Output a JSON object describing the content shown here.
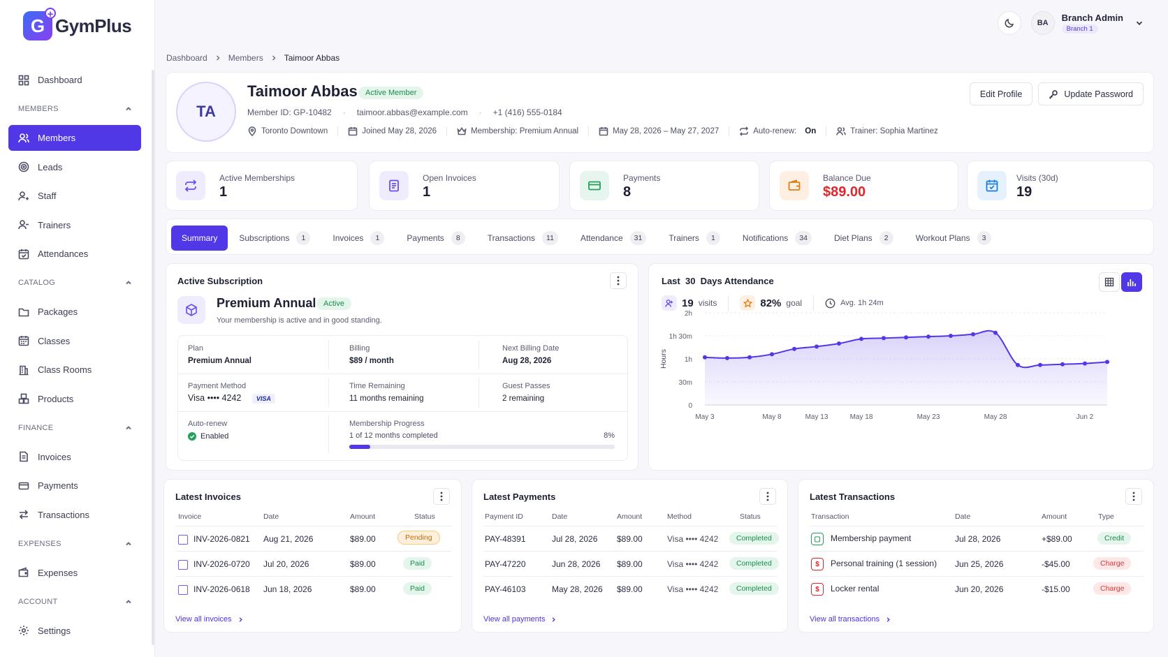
{
  "app": {
    "logo_text": "GymPlus"
  },
  "user": {
    "initials": "BA",
    "name": "Branch Admin",
    "branch": "Branch 1"
  },
  "breadcrumb": [
    "Dashboard",
    "Members",
    "Taimoor Abbas"
  ],
  "sidebar": {
    "dashboard": "Dashboard",
    "sections": {
      "members": "MEMBERS",
      "catalog": "CATALOG",
      "finance": "FINANCE",
      "expenses": "EXPENSES",
      "account": "ACCOUNT"
    },
    "items": {
      "members": "Members",
      "leads": "Leads",
      "staff": "Staff",
      "trainers": "Trainers",
      "attendances": "Attendances",
      "packages": "Packages",
      "classes": "Classes",
      "class_rooms": "Class Rooms",
      "products": "Products",
      "invoices": "Invoices",
      "payments": "Payments",
      "transactions": "Transactions",
      "expenses": "Expenses",
      "settings": "Settings"
    }
  },
  "profile": {
    "initials": "TA",
    "name": "Taimoor Abbas",
    "status": "Active Member",
    "member_id": "Member ID: GP-10482",
    "email": "taimoor.abbas@example.com",
    "phone": "+1 (416) 555-0184",
    "location": "Toronto Downtown",
    "joined": "Joined May 28, 2026",
    "membership": "Membership: Premium Annual",
    "period": "May 28, 2026 – May 27, 2027",
    "auto_renew_label": "Auto-renew:",
    "auto_renew_value": "On",
    "trainer": "Trainer: Sophia Martinez",
    "edit_btn": "Edit Profile",
    "password_btn": "Update Password"
  },
  "stats": [
    {
      "label": "Active Memberships",
      "value": "1"
    },
    {
      "label": "Open Invoices",
      "value": "1"
    },
    {
      "label": "Payments",
      "value": "8"
    },
    {
      "label": "Balance Due",
      "value": "$89.00"
    },
    {
      "label": "Visits (30d)",
      "value": "19"
    }
  ],
  "tabs": [
    {
      "label": "Summary"
    },
    {
      "label": "Subscriptions",
      "count": "1"
    },
    {
      "label": "Invoices",
      "count": "1"
    },
    {
      "label": "Payments",
      "count": "8"
    },
    {
      "label": "Transactions",
      "count": "11"
    },
    {
      "label": "Attendance",
      "count": "31"
    },
    {
      "label": "Trainers",
      "count": "1"
    },
    {
      "label": "Notifications",
      "count": "34"
    },
    {
      "label": "Diet Plans",
      "count": "2"
    },
    {
      "label": "Workout Plans",
      "count": "3"
    }
  ],
  "subscription": {
    "title": "Active Subscription",
    "plan_name": "Premium Annual",
    "status": "Active",
    "description": "Your membership is active and in good standing.",
    "plan_label": "Plan",
    "plan_value": "Premium Annual",
    "billing_label": "Billing",
    "billing_value": "$89 / month",
    "next_label": "Next Billing Date",
    "next_value": "Aug 28, 2026",
    "method_label": "Payment Method",
    "method_value": "Visa •••• 4242",
    "card_brand": "VISA",
    "remaining_label": "Time Remaining",
    "remaining_value": "11 months remaining",
    "guest_label": "Guest Passes",
    "guest_value": "2 remaining",
    "autorenew_label": "Auto-renew",
    "autorenew_value": "Enabled",
    "progress_label": "Membership Progress",
    "progress_text": "1 of 12 months completed",
    "progress_pct": "8%",
    "progress_value": 0.08
  },
  "attendance": {
    "title_a": "Last",
    "title_b": "30",
    "title_c": "Days Attendance",
    "visits": "19",
    "visits_label": "visits",
    "goal": "82%",
    "goal_label": "goal",
    "avg": "Avg. 1h 24m"
  },
  "chart_data": {
    "type": "area",
    "x": [
      "May 3",
      "May 5",
      "May 6",
      "May 8",
      "May 10",
      "May 13",
      "May 15",
      "May 18",
      "May 20",
      "May 22",
      "May 23",
      "May 25",
      "May 27",
      "May 28",
      "May 29",
      "May 31",
      "Jun 1",
      "Jun 2",
      "Jun 3"
    ],
    "x_ticks": [
      "May 3",
      "May 8",
      "May 13",
      "May 18",
      "May 23",
      "May 28",
      "Jun 2"
    ],
    "y_ticks": [
      "0",
      "30m",
      "1h",
      "1h 30m",
      "2h"
    ],
    "ylabel": "Hours",
    "ylim": [
      0,
      120
    ],
    "values": [
      62,
      61,
      62,
      66,
      73,
      76,
      80,
      86,
      87,
      88,
      89,
      90,
      92,
      94,
      52,
      52,
      53,
      54,
      56
    ],
    "unit": "minutes",
    "grid": true,
    "color": "#5138e6"
  },
  "invoices": {
    "title": "Latest Invoices",
    "headers": [
      "Invoice",
      "Date",
      "Amount",
      "Status"
    ],
    "rows": [
      {
        "id": "INV-2026-0821",
        "date": "Aug 21, 2026",
        "amount": "$89.00",
        "status": "Pending"
      },
      {
        "id": "INV-2026-0720",
        "date": "Jul 20, 2026",
        "amount": "$89.00",
        "status": "Paid"
      },
      {
        "id": "INV-2026-0618",
        "date": "Jun 18, 2026",
        "amount": "$89.00",
        "status": "Paid"
      }
    ],
    "view_all": "View all invoices"
  },
  "payments": {
    "title": "Latest Payments",
    "headers": [
      "Payment ID",
      "Date",
      "Amount",
      "Method",
      "Status"
    ],
    "rows": [
      {
        "id": "PAY-48391",
        "date": "Jul 28, 2026",
        "amount": "$89.00",
        "method": "Visa •••• 4242",
        "status": "Completed"
      },
      {
        "id": "PAY-47220",
        "date": "Jun 28, 2026",
        "amount": "$89.00",
        "method": "Visa •••• 4242",
        "status": "Completed"
      },
      {
        "id": "PAY-46103",
        "date": "May 28, 2026",
        "amount": "$89.00",
        "method": "Visa •••• 4242",
        "status": "Completed"
      }
    ],
    "view_all": "View all payments"
  },
  "transactions": {
    "title": "Latest Transactions",
    "headers": [
      "Transaction",
      "Date",
      "Amount",
      "Type"
    ],
    "rows": [
      {
        "name": "Membership payment",
        "date": "Jul 28, 2026",
        "amount": "+$89.00",
        "type": "Credit"
      },
      {
        "name": "Personal training (1 session)",
        "date": "Jun 25, 2026",
        "amount": "-$45.00",
        "type": "Charge"
      },
      {
        "name": "Locker rental",
        "date": "Jun 20, 2026",
        "amount": "-$15.00",
        "type": "Charge"
      }
    ],
    "view_all": "View all transactions"
  },
  "colors": {
    "accent": "#5138e6",
    "success": "#1d8a4c",
    "danger": "#d23a3a",
    "warning": "#c36b06"
  }
}
